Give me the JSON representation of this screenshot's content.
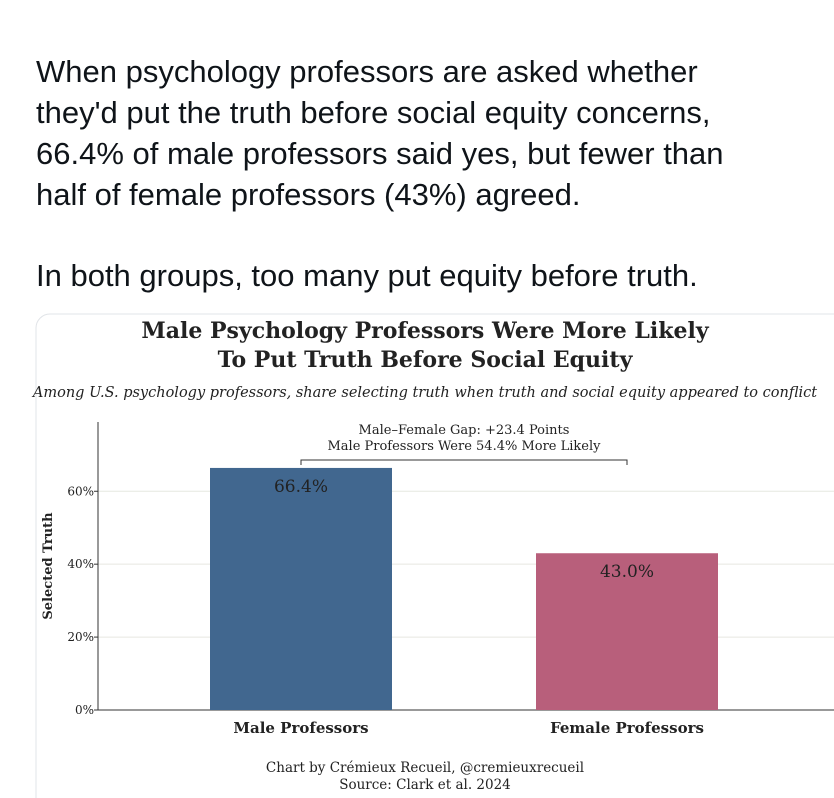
{
  "tweet": {
    "paragraphs": [
      [
        "When psychology professors are asked whether",
        "they'd put the truth before social equity concerns,",
        "66.4% of male professors said yes, but fewer than",
        "half of female professors (43%) agreed."
      ],
      [
        "In both groups, too many put equity before truth."
      ]
    ]
  },
  "chart_data": {
    "type": "bar",
    "title": [
      "Male Psychology Professors Were More Likely",
      "To Put Truth Before Social Equity"
    ],
    "subtitle": "Among U.S. psychology professors, share selecting truth when truth and social equity appeared to conflict",
    "y_label": "Selected Truth",
    "categories": [
      "Male Professors",
      "Female Professors"
    ],
    "values": [
      66.4,
      43.0
    ],
    "value_labels": [
      "66.4%",
      "43.0%"
    ],
    "colors": [
      "#41678f",
      "#b85f7b"
    ],
    "ylim": [
      0,
      79
    ],
    "yticks": [
      {
        "value": 0,
        "label": "0%"
      },
      {
        "value": 20,
        "label": "20%"
      },
      {
        "value": 40,
        "label": "40%"
      },
      {
        "value": 60,
        "label": "60%"
      }
    ],
    "grid": true,
    "annotation": [
      "Male–Female Gap: +23.4 Points",
      "Male Professors Were 54.4% More Likely"
    ],
    "credits": [
      "Chart by Crémieux Recueil, @cremieuxrecueil",
      "Source: Clark et al. 2024"
    ]
  }
}
